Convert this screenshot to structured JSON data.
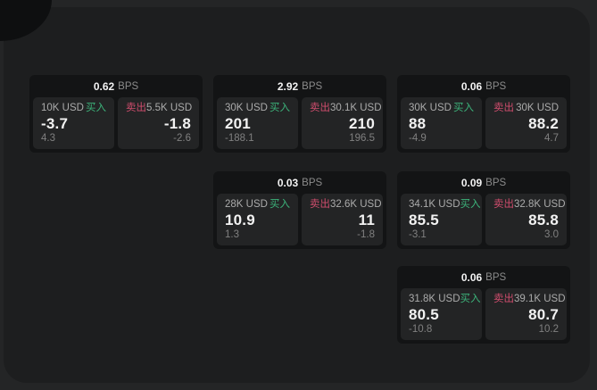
{
  "labels": {
    "buy": "买入",
    "sell": "卖出",
    "bps_unit": "BPS"
  },
  "colors": {
    "outer_bg": "#242526",
    "window_bg": "#1d1e1f",
    "card_bg": "#131415",
    "panel_bg": "#232425",
    "buy_green": "#3cb37a",
    "sell_red": "#cf4d6d",
    "value_text": "#f2f2f2",
    "label_text": "#ababab",
    "delta_text": "#808080"
  },
  "cards": [
    {
      "bps": "0.62",
      "buy": {
        "amount": "10K USD",
        "value": "-3.7",
        "delta": "4.3"
      },
      "sell": {
        "amount": "5.5K USD",
        "value": "-1.8",
        "delta": "-2.6"
      }
    },
    {
      "bps": "2.92",
      "buy": {
        "amount": "30K USD",
        "value": "201",
        "delta": "-188.1"
      },
      "sell": {
        "amount": "30.1K USD",
        "value": "210",
        "delta": "196.5"
      }
    },
    {
      "bps": "0.06",
      "buy": {
        "amount": "30K USD",
        "value": "88",
        "delta": "-4.9"
      },
      "sell": {
        "amount": "30K USD",
        "value": "88.2",
        "delta": "4.7"
      }
    },
    {
      "bps": "0.03",
      "buy": {
        "amount": "28K USD",
        "value": "10.9",
        "delta": "1.3"
      },
      "sell": {
        "amount": "32.6K USD",
        "value": "11",
        "delta": "-1.8"
      }
    },
    {
      "bps": "0.09",
      "buy": {
        "amount": "34.1K USD",
        "value": "85.5",
        "delta": "-3.1"
      },
      "sell": {
        "amount": "32.8K USD",
        "value": "85.8",
        "delta": "3.0"
      }
    },
    {
      "bps": "0.06",
      "buy": {
        "amount": "31.8K USD",
        "value": "80.5",
        "delta": "-10.8"
      },
      "sell": {
        "amount": "39.1K USD",
        "value": "80.7",
        "delta": "10.2"
      }
    }
  ]
}
